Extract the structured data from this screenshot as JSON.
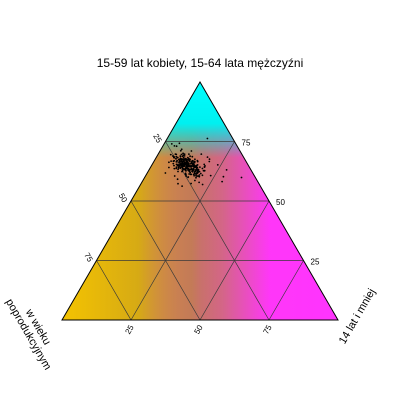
{
  "chart_data": {
    "type": "scatter",
    "subtype": "ternary",
    "title": "15-59 lat kobiety, 15-64 lata mężczyźni",
    "axis_labels": {
      "top": "15-59 lat kobiety, 15-64 lata mężczyźni",
      "left": [
        "w wieku",
        "poprodukcyjnym"
      ],
      "right": "14 lat i mniej"
    },
    "tick_labels": {
      "top_axis": [
        "75",
        "50",
        "25"
      ],
      "left_axis": [
        "25",
        "50",
        "75"
      ],
      "bottom_axis": [
        "25",
        "50",
        "75"
      ]
    },
    "grid_levels": [
      25,
      50,
      75
    ],
    "colors": {
      "top_corner": "#00ffff",
      "left_corner": "#f5c400",
      "right_corner": "#ff33ff",
      "mix_dark": "#b08a2e",
      "points": "#000000",
      "grid": "#3a3a3a"
    },
    "points_cluster": {
      "center": {
        "working_age": 65,
        "post_working": 22,
        "age_14_or_less": 13
      },
      "spread_note": "dense cluster of black points around the center value"
    }
  }
}
